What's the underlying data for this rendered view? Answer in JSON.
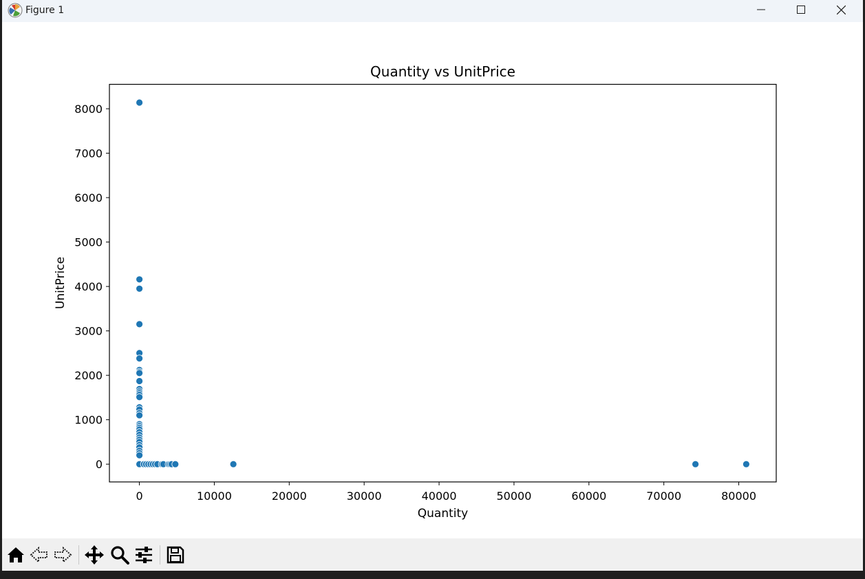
{
  "window": {
    "title": "Figure 1",
    "controls": [
      "minimize-icon",
      "maximize-icon",
      "close-icon"
    ]
  },
  "toolbar": {
    "buttons": [
      "home-icon",
      "back-icon",
      "forward-icon",
      "pan-icon",
      "zoom-icon",
      "configure-subplots-icon",
      "save-icon"
    ]
  },
  "chart_data": {
    "type": "scatter",
    "title": "Quantity vs UnitPrice",
    "xlabel": "Quantity",
    "ylabel": "UnitPrice",
    "xlim": [
      -4000,
      85000
    ],
    "ylim": [
      -400,
      8550
    ],
    "xticks": [
      0,
      10000,
      20000,
      30000,
      40000,
      50000,
      60000,
      70000,
      80000
    ],
    "yticks": [
      0,
      1000,
      2000,
      3000,
      4000,
      5000,
      6000,
      7000,
      8000
    ],
    "grid": false,
    "color": "#1f77b4",
    "points": [
      [
        0,
        8140
      ],
      [
        0,
        4160
      ],
      [
        0,
        3950
      ],
      [
        0,
        3150
      ],
      [
        0,
        2500
      ],
      [
        0,
        2380
      ],
      [
        0,
        2120
      ],
      [
        0,
        2080
      ],
      [
        0,
        2050
      ],
      [
        0,
        1870
      ],
      [
        0,
        1690
      ],
      [
        0,
        1640
      ],
      [
        0,
        1600
      ],
      [
        0,
        1560
      ],
      [
        0,
        1510
      ],
      [
        0,
        1280
      ],
      [
        0,
        1230
      ],
      [
        0,
        1150
      ],
      [
        0,
        1100
      ],
      [
        0,
        900
      ],
      [
        0,
        860
      ],
      [
        0,
        820
      ],
      [
        0,
        780
      ],
      [
        0,
        720
      ],
      [
        0,
        660
      ],
      [
        0,
        600
      ],
      [
        0,
        550
      ],
      [
        0,
        500
      ],
      [
        0,
        430
      ],
      [
        0,
        380
      ],
      [
        0,
        300
      ],
      [
        0,
        250
      ],
      [
        0,
        200
      ],
      [
        0,
        0
      ],
      [
        600,
        0
      ],
      [
        900,
        0
      ],
      [
        1200,
        0
      ],
      [
        1500,
        0
      ],
      [
        1800,
        0
      ],
      [
        2100,
        0
      ],
      [
        2400,
        0
      ],
      [
        3000,
        0
      ],
      [
        3200,
        0
      ],
      [
        3900,
        0
      ],
      [
        4100,
        0
      ],
      [
        4300,
        0
      ],
      [
        4800,
        0
      ],
      [
        12540,
        0
      ],
      [
        74215,
        0
      ],
      [
        80995,
        0
      ]
    ]
  }
}
